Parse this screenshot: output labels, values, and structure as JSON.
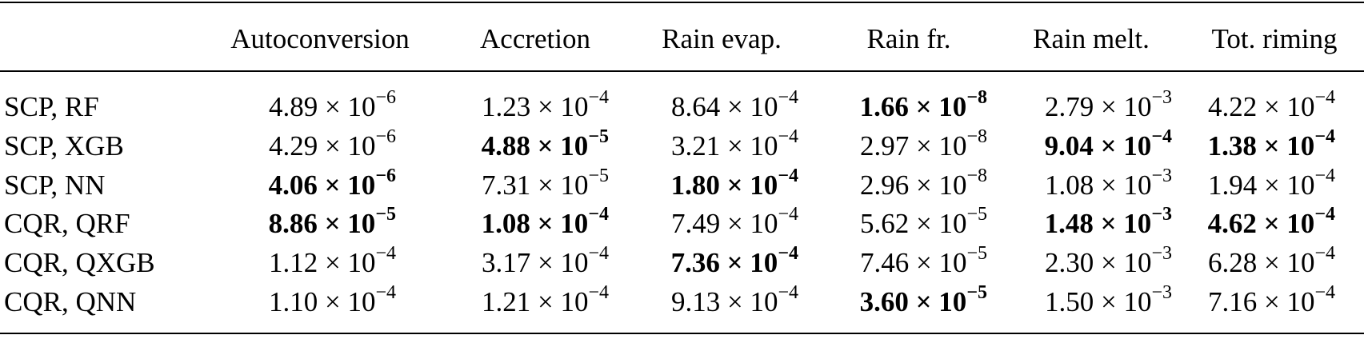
{
  "table": {
    "header": [
      "Autoconversion",
      "Accretion",
      "Rain evap.",
      "Rain fr.",
      "Rain melt.",
      "Tot. riming"
    ],
    "rows": [
      {
        "label": "SCP, RF",
        "cells": [
          {
            "coefficient": "4.89 × 10",
            "exponent": "−6",
            "bold": false
          },
          {
            "coefficient": "1.23 × 10",
            "exponent": "−4",
            "bold": false
          },
          {
            "coefficient": "8.64 × 10",
            "exponent": "−4",
            "bold": false
          },
          {
            "coefficient": "1.66 × 10",
            "exponent": "−8",
            "bold": true
          },
          {
            "coefficient": "2.79 × 10",
            "exponent": "−3",
            "bold": false
          },
          {
            "coefficient": "4.22 × 10",
            "exponent": "−4",
            "bold": false
          }
        ]
      },
      {
        "label": "SCP, XGB",
        "cells": [
          {
            "coefficient": "4.29 × 10",
            "exponent": "−6",
            "bold": false
          },
          {
            "coefficient": "4.88 × 10",
            "exponent": "−5",
            "bold": true
          },
          {
            "coefficient": "3.21 × 10",
            "exponent": "−4",
            "bold": false
          },
          {
            "coefficient": "2.97 × 10",
            "exponent": "−8",
            "bold": false
          },
          {
            "coefficient": "9.04 × 10",
            "exponent": "−4",
            "bold": true
          },
          {
            "coefficient": "1.38 × 10",
            "exponent": "−4",
            "bold": true
          }
        ]
      },
      {
        "label": "SCP, NN",
        "cells": [
          {
            "coefficient": "4.06 × 10",
            "exponent": "−6",
            "bold": true
          },
          {
            "coefficient": "7.31 × 10",
            "exponent": "−5",
            "bold": false
          },
          {
            "coefficient": "1.80 × 10",
            "exponent": "−4",
            "bold": true
          },
          {
            "coefficient": "2.96 × 10",
            "exponent": "−8",
            "bold": false
          },
          {
            "coefficient": "1.08 × 10",
            "exponent": "−3",
            "bold": false
          },
          {
            "coefficient": "1.94 × 10",
            "exponent": "−4",
            "bold": false
          }
        ]
      },
      {
        "label": "CQR, QRF",
        "cells": [
          {
            "coefficient": "8.86 × 10",
            "exponent": "−5",
            "bold": true
          },
          {
            "coefficient": "1.08 × 10",
            "exponent": "−4",
            "bold": true
          },
          {
            "coefficient": "7.49 × 10",
            "exponent": "−4",
            "bold": false
          },
          {
            "coefficient": "5.62 × 10",
            "exponent": "−5",
            "bold": false
          },
          {
            "coefficient": "1.48 × 10",
            "exponent": "−3",
            "bold": true
          },
          {
            "coefficient": "4.62 × 10",
            "exponent": "−4",
            "bold": true
          }
        ]
      },
      {
        "label": "CQR, QXGB",
        "cells": [
          {
            "coefficient": "1.12 × 10",
            "exponent": "−4",
            "bold": false
          },
          {
            "coefficient": "3.17 × 10",
            "exponent": "−4",
            "bold": false
          },
          {
            "coefficient": "7.36 × 10",
            "exponent": "−4",
            "bold": true
          },
          {
            "coefficient": "7.46 × 10",
            "exponent": "−5",
            "bold": false
          },
          {
            "coefficient": "2.30 × 10",
            "exponent": "−3",
            "bold": false
          },
          {
            "coefficient": "6.28 × 10",
            "exponent": "−4",
            "bold": false
          }
        ]
      },
      {
        "label": "CQR, QNN",
        "cells": [
          {
            "coefficient": "1.10 × 10",
            "exponent": "−4",
            "bold": false
          },
          {
            "coefficient": "1.21 × 10",
            "exponent": "−4",
            "bold": false
          },
          {
            "coefficient": "9.13 × 10",
            "exponent": "−4",
            "bold": false
          },
          {
            "coefficient": "3.60 × 10",
            "exponent": "−5",
            "bold": true
          },
          {
            "coefficient": "1.50 × 10",
            "exponent": "−3",
            "bold": false
          },
          {
            "coefficient": "7.16 × 10",
            "exponent": "−4",
            "bold": false
          }
        ]
      }
    ]
  }
}
